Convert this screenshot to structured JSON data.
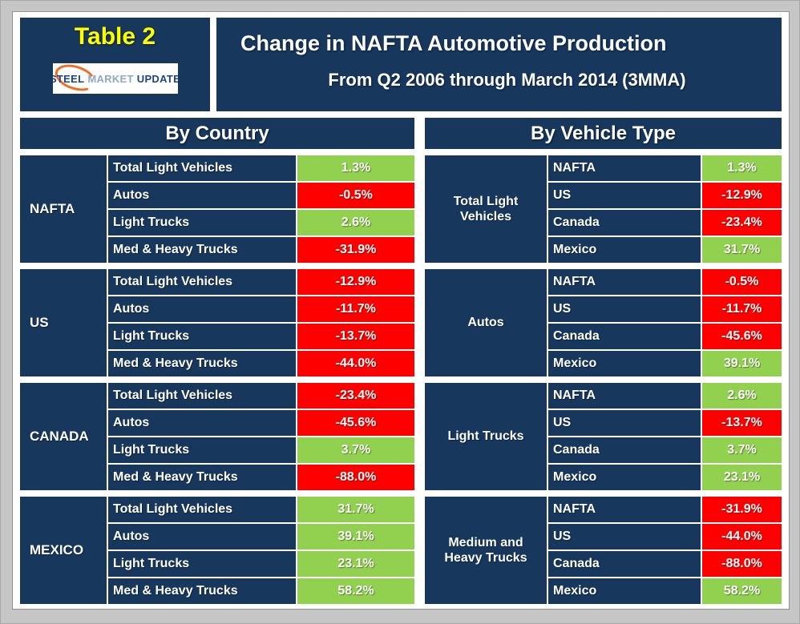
{
  "header": {
    "table_label": "Table 2",
    "title": "Change in NAFTA Automotive Production",
    "subtitle": "From Q2 2006 through March 2014 (3MMA)",
    "logo": {
      "steel": "STEEL",
      "market": "MARKET",
      "update": "UPDATE"
    }
  },
  "colors": {
    "navy_background": "#17375D",
    "positive_green": "#92D050",
    "negative_red": "#FF0000",
    "table_label_yellow": "#FFFF00",
    "logo_orange": "#F26C21"
  },
  "chart_data": {
    "type": "table",
    "title": "Change in NAFTA Automotive Production",
    "subtitle": "From Q2 2006 through March 2014 (3MMA)",
    "tables": [
      {
        "header": "By Country",
        "groups": [
          {
            "label": "NAFTA",
            "rows": [
              {
                "label": "Total Light Vehicles",
                "value": "1.3%",
                "state": "pos"
              },
              {
                "label": "Autos",
                "value": "-0.5%",
                "state": "neg"
              },
              {
                "label": "Light Trucks",
                "value": "2.6%",
                "state": "pos"
              },
              {
                "label": "Med & Heavy Trucks",
                "value": "-31.9%",
                "state": "neg"
              }
            ]
          },
          {
            "label": "US",
            "rows": [
              {
                "label": "Total Light Vehicles",
                "value": "-12.9%",
                "state": "neg"
              },
              {
                "label": "Autos",
                "value": "-11.7%",
                "state": "neg"
              },
              {
                "label": "Light Trucks",
                "value": "-13.7%",
                "state": "neg"
              },
              {
                "label": "Med & Heavy Trucks",
                "value": "-44.0%",
                "state": "neg"
              }
            ]
          },
          {
            "label": "CANADA",
            "rows": [
              {
                "label": "Total Light Vehicles",
                "value": "-23.4%",
                "state": "neg"
              },
              {
                "label": "Autos",
                "value": "-45.6%",
                "state": "neg"
              },
              {
                "label": "Light Trucks",
                "value": "3.7%",
                "state": "pos"
              },
              {
                "label": "Med & Heavy Trucks",
                "value": "-88.0%",
                "state": "neg"
              }
            ]
          },
          {
            "label": "MEXICO",
            "rows": [
              {
                "label": "Total Light Vehicles",
                "value": "31.7%",
                "state": "pos"
              },
              {
                "label": "Autos",
                "value": "39.1%",
                "state": "pos"
              },
              {
                "label": "Light Trucks",
                "value": "23.1%",
                "state": "pos"
              },
              {
                "label": "Med & Heavy Trucks",
                "value": "58.2%",
                "state": "pos"
              }
            ]
          }
        ]
      },
      {
        "header": "By Vehicle Type",
        "groups": [
          {
            "label": "Total Light Vehicles",
            "rows": [
              {
                "label": "NAFTA",
                "value": "1.3%",
                "state": "pos"
              },
              {
                "label": "US",
                "value": "-12.9%",
                "state": "neg"
              },
              {
                "label": "Canada",
                "value": "-23.4%",
                "state": "neg"
              },
              {
                "label": "Mexico",
                "value": "31.7%",
                "state": "pos"
              }
            ]
          },
          {
            "label": "Autos",
            "rows": [
              {
                "label": "NAFTA",
                "value": "-0.5%",
                "state": "neg"
              },
              {
                "label": "US",
                "value": "-11.7%",
                "state": "neg"
              },
              {
                "label": "Canada",
                "value": "-45.6%",
                "state": "neg"
              },
              {
                "label": "Mexico",
                "value": "39.1%",
                "state": "pos"
              }
            ]
          },
          {
            "label": "Light Trucks",
            "rows": [
              {
                "label": "NAFTA",
                "value": "2.6%",
                "state": "pos"
              },
              {
                "label": "US",
                "value": "-13.7%",
                "state": "neg"
              },
              {
                "label": "Canada",
                "value": "3.7%",
                "state": "pos"
              },
              {
                "label": "Mexico",
                "value": "23.1%",
                "state": "pos"
              }
            ]
          },
          {
            "label": "Medium and Heavy Trucks",
            "rows": [
              {
                "label": "NAFTA",
                "value": "-31.9%",
                "state": "neg"
              },
              {
                "label": "US",
                "value": "-44.0%",
                "state": "neg"
              },
              {
                "label": "Canada",
                "value": "-88.0%",
                "state": "neg"
              },
              {
                "label": "Mexico",
                "value": "58.2%",
                "state": "pos"
              }
            ]
          }
        ]
      }
    ]
  }
}
